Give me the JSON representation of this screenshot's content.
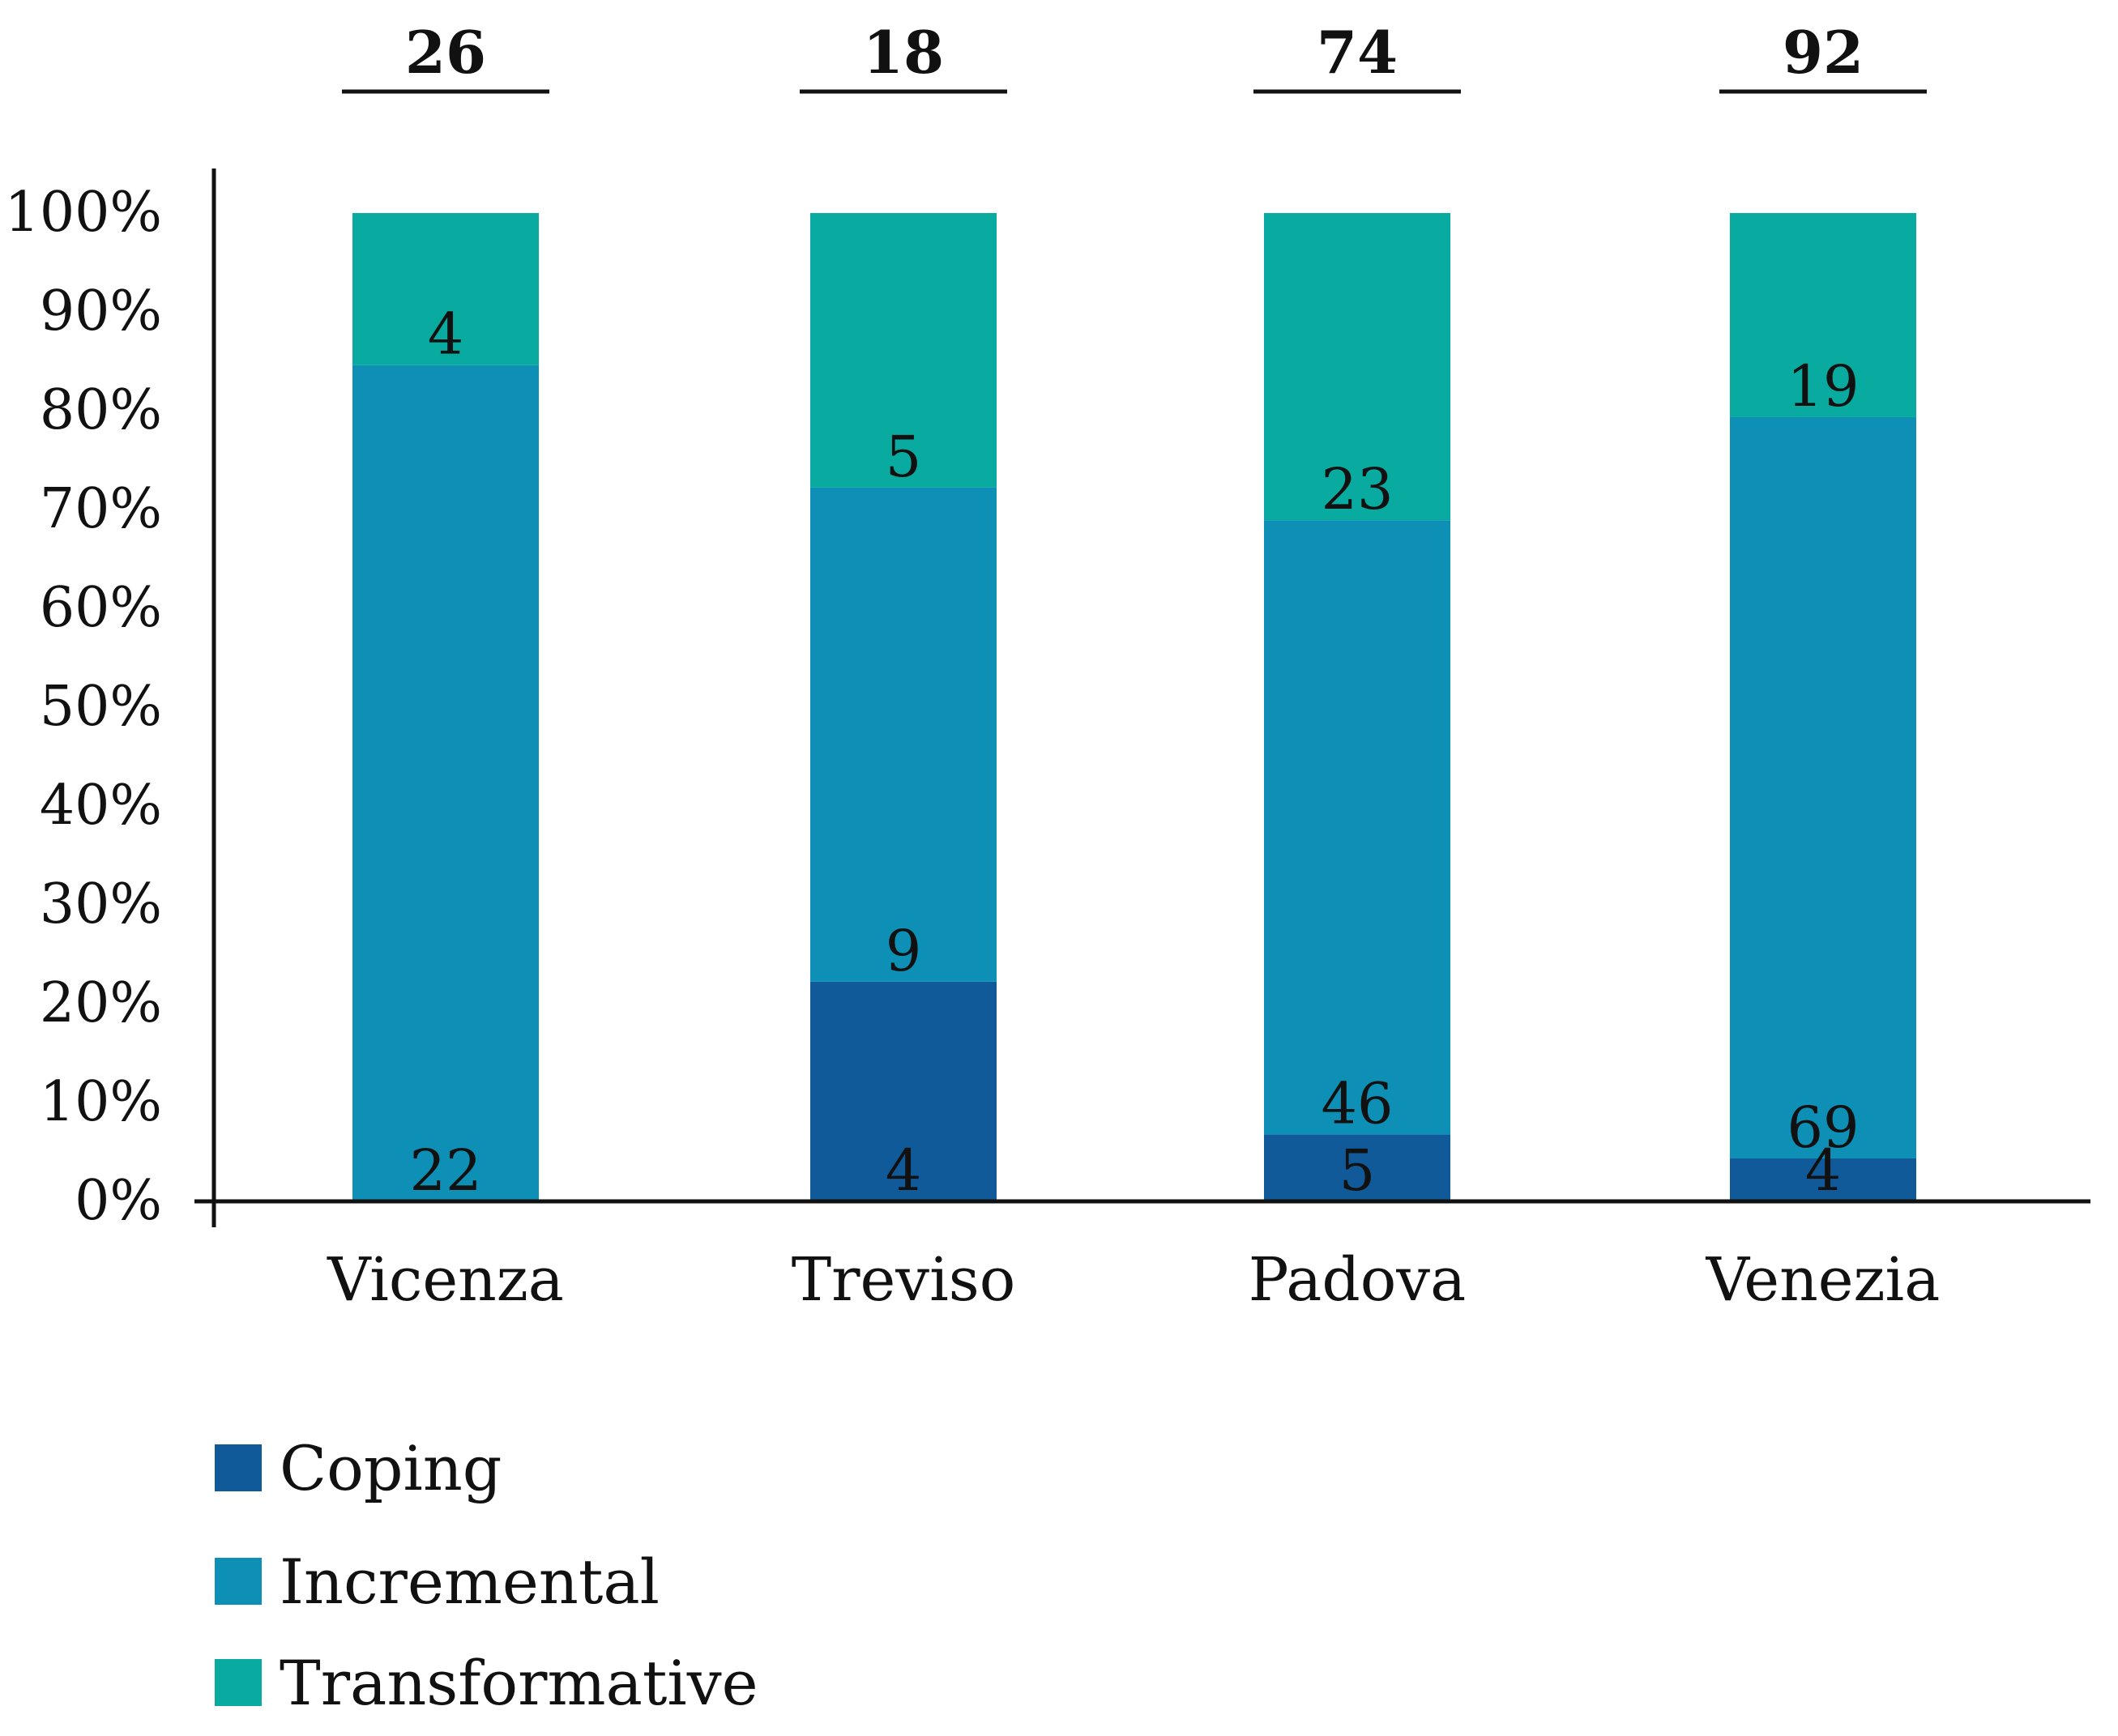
{
  "chart_data": {
    "type": "bar",
    "stacked": true,
    "percent": true,
    "categories": [
      "Vicenza",
      "Treviso",
      "Padova",
      "Venezia"
    ],
    "totals": [
      "26",
      "18",
      "74",
      "92"
    ],
    "series": [
      {
        "name": "Coping",
        "color": "#115a99",
        "values": [
          0,
          4,
          5,
          4
        ],
        "labels": [
          "",
          "4",
          "5",
          "4"
        ]
      },
      {
        "name": "Incremental",
        "color": "#0d8fb6",
        "values": [
          22,
          9,
          46,
          69
        ],
        "labels": [
          "22",
          "9",
          "46",
          "69"
        ]
      },
      {
        "name": "Transformative",
        "color": "#09aa9f",
        "values": [
          4,
          5,
          23,
          19
        ],
        "labels": [
          "4",
          "5",
          "23",
          "19"
        ]
      }
    ],
    "yticks": [
      "0%",
      "10%",
      "20%",
      "30%",
      "40%",
      "50%",
      "60%",
      "70%",
      "80%",
      "90%",
      "100%"
    ],
    "ylim": [
      0,
      100
    ],
    "legend_position": "bottom-left"
  }
}
